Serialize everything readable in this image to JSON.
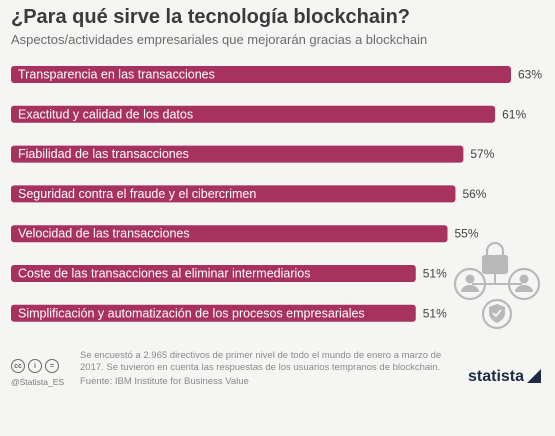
{
  "title": "¿Para qué sirve la tecnología blockchain?",
  "subtitle": "Aspectos/actividades empresariales que mejorarán gracias a blockchain",
  "chart_data": {
    "type": "bar",
    "orientation": "horizontal",
    "unit": "%",
    "categories": [
      "Transparencia en las transacciones",
      "Exactitud y calidad de los datos",
      "Fiabilidad de las transacciones",
      "Seguridad contra el fraude y el cibercrimen",
      "Velocidad de las transacciones",
      "Coste de las transacciones al eliminar intermediarios",
      "Simplificación y automatización de los procesos empresariales"
    ],
    "values": [
      63,
      61,
      57,
      56,
      55,
      51,
      51
    ],
    "value_labels": [
      "63%",
      "61%",
      "57%",
      "56%",
      "55%",
      "51%",
      "51%"
    ],
    "bar_color": "#a8325e",
    "xlim": [
      0,
      63
    ],
    "grid": false,
    "legend": "none"
  },
  "footnote": "Se encuestó a 2.965 directivos de primer nivel de todo el mundo de enero a marzo de 2017. Se tuvieron en cuenta las respuestas de los usuarios tempranos de blockchain.",
  "source": "Fuente: IBM Institute for Business Value",
  "handle": "@Statista_ES",
  "logo": "statista",
  "icons": [
    "lock-icon",
    "user-icon",
    "shield-check-icon",
    "cc-icon",
    "person-icon",
    "equal-icon"
  ]
}
